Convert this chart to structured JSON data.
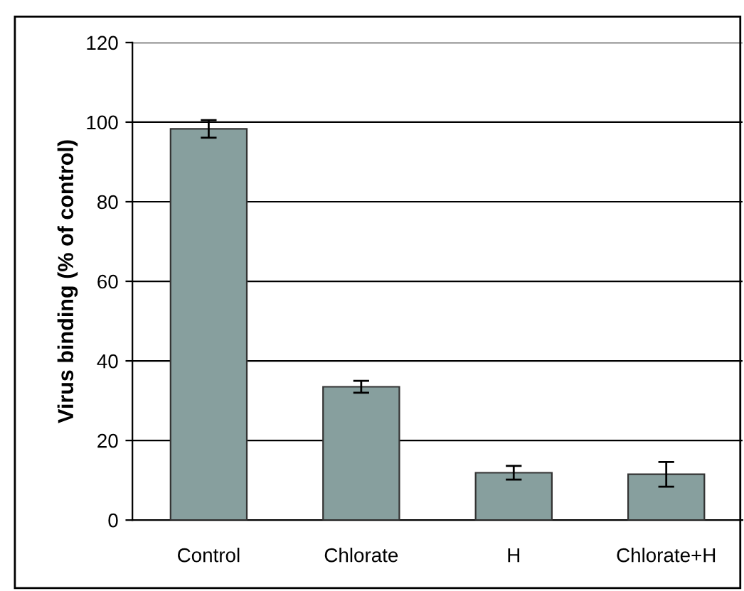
{
  "chart_data": {
    "type": "bar",
    "ylabel": "Virus binding (% of control)",
    "categories": [
      "Control",
      "Chlorate",
      "H",
      "Chlorate+H"
    ],
    "values": [
      98.3,
      33.5,
      11.9,
      11.5
    ],
    "errors": [
      2.2,
      1.5,
      1.7,
      3.1
    ],
    "color": "#879f9e",
    "ylim": [
      0,
      120
    ],
    "yticks": [
      0,
      20,
      40,
      60,
      80,
      100,
      120
    ],
    "grid": "y"
  }
}
